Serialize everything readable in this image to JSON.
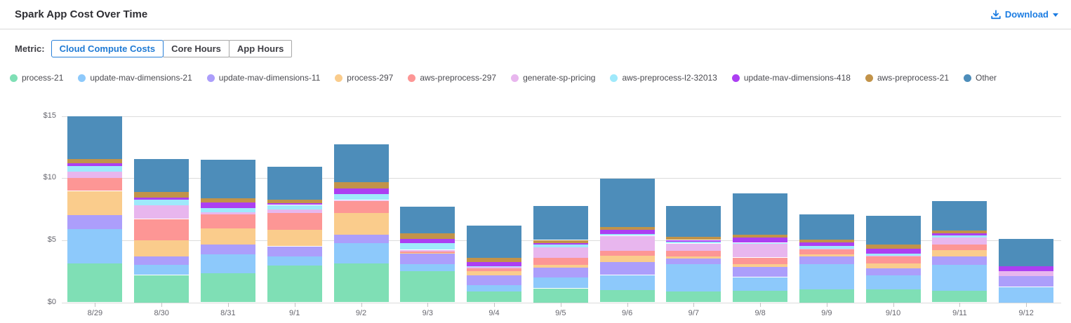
{
  "header": {
    "title": "Spark App Cost Over Time",
    "download_label": "Download"
  },
  "controls": {
    "metric_label": "Metric:",
    "options": [
      {
        "label": "Cloud Compute Costs",
        "selected": true
      },
      {
        "label": "Core Hours",
        "selected": false
      },
      {
        "label": "App Hours",
        "selected": false
      }
    ]
  },
  "colors": {
    "accent_blue": "#1b7ce2",
    "selected_border": "#2980d9",
    "divider": "#d9d9d9",
    "gridline": "#dcdcdc",
    "axis_text": "#66666e"
  },
  "chart_data": {
    "type": "bar",
    "stacked": true,
    "title": "Spark App Cost Over Time",
    "xlabel": "",
    "ylabel": "",
    "ylim": [
      0,
      15
    ],
    "grid": true,
    "legend_position": "top",
    "y_ticks": [
      {
        "label": "$0",
        "value": 0
      },
      {
        "label": "$5",
        "value": 5
      },
      {
        "label": "$10",
        "value": 10
      },
      {
        "label": "$15",
        "value": 15
      }
    ],
    "categories": [
      "8/29",
      "8/30",
      "8/31",
      "9/1",
      "9/2",
      "9/3",
      "9/4",
      "9/5",
      "9/6",
      "9/7",
      "9/8",
      "9/9",
      "9/10",
      "9/11",
      "9/12"
    ],
    "series": [
      {
        "name": "process-21",
        "color": "#7FDFB5",
        "values": [
          3.14,
          2.2,
          2.35,
          2.95,
          3.14,
          2.5,
          0.85,
          1.13,
          0.98,
          0.85,
          0.94,
          1.07,
          1.07,
          0.94,
          0.0
        ]
      },
      {
        "name": "update-mav-dimensions-21",
        "color": "#8DC9FB",
        "values": [
          2.75,
          0.83,
          1.5,
          0.72,
          1.62,
          0.6,
          0.56,
          0.88,
          1.22,
          2.2,
          1.09,
          2.0,
          1.1,
          2.07,
          1.24
        ]
      },
      {
        "name": "update-mav-dimensions-11",
        "color": "#AC9EFB",
        "values": [
          1.12,
          0.68,
          0.79,
          0.84,
          0.69,
          0.81,
          0.76,
          0.76,
          1.05,
          0.47,
          0.84,
          0.6,
          0.56,
          0.66,
          0.85
        ]
      },
      {
        "name": "process-297",
        "color": "#FACC8C",
        "values": [
          1.96,
          1.31,
          1.32,
          1.32,
          1.75,
          0.06,
          0.33,
          0.24,
          0.51,
          0.15,
          0.23,
          0.19,
          0.41,
          0.52,
          0.0
        ]
      },
      {
        "name": "aws-preprocess-297",
        "color": "#FD9695",
        "values": [
          1.05,
          1.69,
          1.13,
          1.37,
          0.98,
          0.13,
          0.23,
          0.56,
          0.41,
          0.47,
          0.51,
          0.41,
          0.57,
          0.46,
          0.0
        ]
      },
      {
        "name": "generate-sp-pricing",
        "color": "#E8B6EE",
        "values": [
          0.51,
          1.09,
          0.15,
          0.27,
          0.05,
          0.13,
          0.11,
          0.85,
          1.19,
          0.6,
          1.09,
          0.04,
          0.05,
          0.56,
          0.43
        ]
      },
      {
        "name": "aws-preprocess-l2-32013",
        "color": "#9FE9FB",
        "values": [
          0.43,
          0.49,
          0.34,
          0.37,
          0.47,
          0.56,
          0.08,
          0.23,
          0.15,
          0.15,
          0.09,
          0.24,
          0.15,
          0.19,
          0.0
        ]
      },
      {
        "name": "update-mav-dimensions-418",
        "color": "#AC3FF2",
        "values": [
          0.23,
          0.15,
          0.45,
          0.15,
          0.47,
          0.34,
          0.33,
          0.14,
          0.32,
          0.13,
          0.42,
          0.25,
          0.41,
          0.18,
          0.38
        ]
      },
      {
        "name": "aws-preprocess-21",
        "color": "#C29349",
        "values": [
          0.34,
          0.42,
          0.34,
          0.28,
          0.51,
          0.45,
          0.32,
          0.23,
          0.22,
          0.25,
          0.24,
          0.26,
          0.34,
          0.19,
          0.0
        ]
      },
      {
        "name": "Other",
        "color": "#4D8DBA",
        "values": [
          3.42,
          2.67,
          3.1,
          2.67,
          3.06,
          2.13,
          2.6,
          2.75,
          3.88,
          2.5,
          3.33,
          2.03,
          2.29,
          2.41,
          2.2
        ]
      }
    ]
  }
}
